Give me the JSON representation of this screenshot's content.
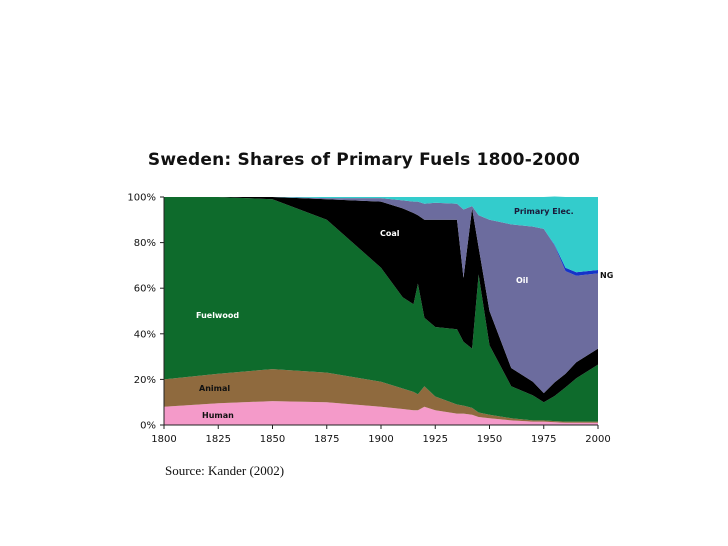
{
  "chart_data": {
    "type": "area",
    "stacked": true,
    "title": "Sweden: Shares of Primary Fuels 1800-2000",
    "xlabel": "",
    "ylabel": "",
    "xlim": [
      1800,
      2000
    ],
    "ylim": [
      0,
      100
    ],
    "x_ticks": [
      "1800",
      "1825",
      "1850",
      "1875",
      "1900",
      "1925",
      "1950",
      "1975",
      "2000"
    ],
    "y_ticks": [
      "0%",
      "20%",
      "40%",
      "60%",
      "80%",
      "100%"
    ],
    "grid": false,
    "legend": "none",
    "series_labels": [
      "Human",
      "Animal",
      "Fuelwood",
      "Coal",
      "Oil",
      "Primary Elec.",
      "NG"
    ],
    "source": "Source: Kander (2002)",
    "colors": {
      "Human": "#f49ac9",
      "Animal": "#8f6a3e",
      "Fuelwood": "#0e6b2c",
      "Coal": "#000000",
      "Oil": "#6c6c9e",
      "NG": "#1533c8",
      "Primary Elec.": "#33cccc"
    },
    "x": [
      1800,
      1825,
      1850,
      1875,
      1900,
      1910,
      1915,
      1917,
      1920,
      1925,
      1935,
      1938,
      1942,
      1945,
      1950,
      1960,
      1970,
      1975,
      1980,
      1985,
      1990,
      2000
    ],
    "series": [
      {
        "name": "Human",
        "values": [
          8,
          9.5,
          10.5,
          10,
          8,
          7,
          6.5,
          6.5,
          8,
          6.5,
          5,
          5,
          4.5,
          3.5,
          3,
          2,
          1.5,
          1.5,
          1.2,
          1,
          1,
          1
        ]
      },
      {
        "name": "Animal",
        "values": [
          12,
          13,
          14,
          13,
          11,
          9,
          8,
          7,
          9,
          6,
          4,
          3.5,
          3,
          2,
          1.5,
          1,
          0.5,
          0.5,
          0.5,
          0.5,
          0.5,
          0.5
        ]
      },
      {
        "name": "Fuelwood",
        "values": [
          80,
          77.5,
          74.5,
          67,
          50,
          40,
          38.5,
          48.5,
          30,
          30.5,
          33,
          28,
          26,
          60.5,
          30.5,
          14,
          11,
          8,
          11,
          15,
          19,
          25
        ]
      },
      {
        "name": "Coal",
        "values": [
          0,
          0,
          1,
          9,
          29,
          39,
          40,
          30,
          43,
          47,
          48,
          28,
          61.5,
          12,
          15,
          8,
          6,
          4,
          6,
          6,
          7,
          7
        ]
      },
      {
        "name": "Oil",
        "values": [
          0,
          0,
          0,
          0.5,
          1.5,
          3.5,
          5,
          6,
          7,
          7.5,
          7,
          30,
          1,
          14,
          40,
          63,
          68,
          72,
          60,
          45,
          38,
          33
        ]
      },
      {
        "name": "NG",
        "values": [
          0,
          0,
          0,
          0,
          0,
          0,
          0,
          0,
          0,
          0,
          0,
          0,
          0,
          0,
          0,
          0,
          0,
          0,
          0.3,
          1.5,
          1.5,
          1.5
        ]
      },
      {
        "name": "Primary Elec.",
        "values": [
          0,
          0,
          0,
          0.5,
          0.5,
          1.5,
          2,
          2,
          3,
          2.5,
          3,
          5.5,
          4,
          8,
          10,
          12,
          13,
          14,
          21.2,
          31,
          33,
          32
        ]
      }
    ]
  }
}
